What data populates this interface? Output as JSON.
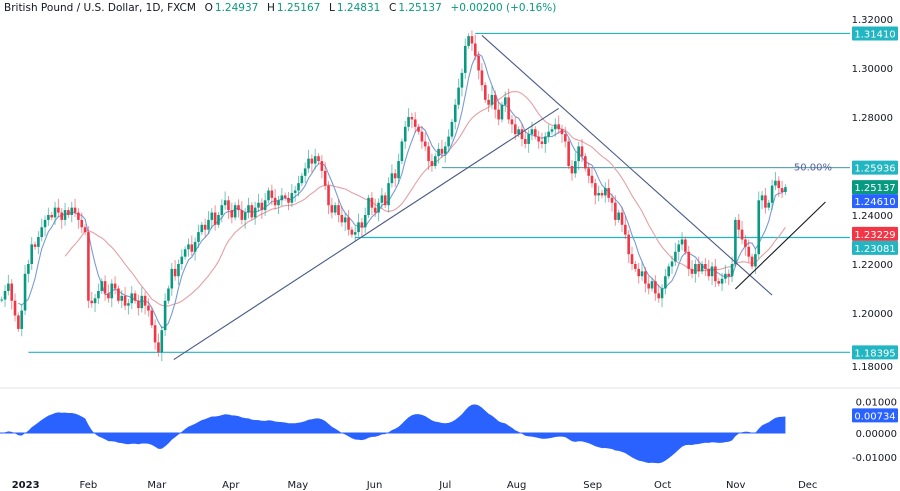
{
  "header": {
    "symbol": "British Pound / U.S. Dollar, 1D, FXCM",
    "o_label": "O",
    "open": "1.24937",
    "h_label": "H",
    "high": "1.25167",
    "l_label": "L",
    "low": "1.24831",
    "c_label": "C",
    "close": "1.25137",
    "change": "+0.00200 (+0.16%)"
  },
  "colors": {
    "up": "#089981",
    "down": "#f23645",
    "level": "#22b5c2",
    "trend": "#4a5a86",
    "ma_fast": "#7b9bd4",
    "ma_slow": "#e3a0a6",
    "osc": "#2962ff"
  },
  "chart_data": {
    "type": "candlestick",
    "price_axis": {
      "ylim": [
        1.175,
        1.325
      ],
      "ticks": [
        "1.32000",
        "1.30000",
        "1.28000",
        "1.24000",
        "1.22000",
        "1.20000",
        "1.18000"
      ]
    },
    "time_axis": {
      "ticks": [
        {
          "label": "2023",
          "bar": 3
        },
        {
          "label": "Feb",
          "bar": 26
        },
        {
          "label": "Mar",
          "bar": 46.5
        },
        {
          "label": "Apr",
          "bar": 68.7
        },
        {
          "label": "May",
          "bar": 88.8
        },
        {
          "label": "Jun",
          "bar": 111.8
        },
        {
          "label": "Jul",
          "bar": 133
        },
        {
          "label": "Aug",
          "bar": 154.4
        },
        {
          "label": "Sep",
          "bar": 177.2
        },
        {
          "label": "Oct",
          "bar": 198.2
        },
        {
          "label": "Nov",
          "bar": 220.1
        },
        {
          "label": "Dec",
          "bar": 241.7
        }
      ]
    },
    "closes": [
      1.2055,
      1.209,
      1.212,
      1.205,
      1.199,
      1.1935,
      1.201,
      1.216,
      1.22,
      1.228,
      1.227,
      1.231,
      1.235,
      1.238,
      1.24,
      1.239,
      1.243,
      1.241,
      1.238,
      1.242,
      1.24,
      1.243,
      1.241,
      1.238,
      1.235,
      1.233,
      1.205,
      1.204,
      1.206,
      1.209,
      1.213,
      1.208,
      1.206,
      1.212,
      1.21,
      1.205,
      1.207,
      1.203,
      1.204,
      1.208,
      1.205,
      1.202,
      1.207,
      1.203,
      1.201,
      1.195,
      1.188,
      1.184,
      1.193,
      1.205,
      1.21,
      1.218,
      1.215,
      1.22,
      1.223,
      1.226,
      1.228,
      1.225,
      1.229,
      1.233,
      1.236,
      1.234,
      1.238,
      1.241,
      1.236,
      1.24,
      1.244,
      1.246,
      1.242,
      1.239,
      1.244,
      1.242,
      1.238,
      1.241,
      1.244,
      1.239,
      1.243,
      1.245,
      1.242,
      1.246,
      1.25,
      1.247,
      1.244,
      1.246,
      1.248,
      1.247,
      1.245,
      1.249,
      1.25,
      1.253,
      1.256,
      1.259,
      1.263,
      1.261,
      1.264,
      1.262,
      1.258,
      1.252,
      1.244,
      1.241,
      1.244,
      1.24,
      1.237,
      1.239,
      1.234,
      1.232,
      1.233,
      1.237,
      1.235,
      1.24,
      1.247,
      1.243,
      1.241,
      1.245,
      1.248,
      1.244,
      1.253,
      1.257,
      1.255,
      1.262,
      1.27,
      1.276,
      1.28,
      1.279,
      1.276,
      1.274,
      1.27,
      1.268,
      1.262,
      1.26,
      1.264,
      1.267,
      1.265,
      1.268,
      1.272,
      1.278,
      1.285,
      1.292,
      1.298,
      1.309,
      1.313,
      1.31,
      1.305,
      1.299,
      1.293,
      1.287,
      1.285,
      1.289,
      1.283,
      1.279,
      1.285,
      1.288,
      1.279,
      1.277,
      1.273,
      1.275,
      1.271,
      1.269,
      1.273,
      1.275,
      1.272,
      1.27,
      1.269,
      1.272,
      1.274,
      1.275,
      1.277,
      1.275,
      1.273,
      1.27,
      1.26,
      1.257,
      1.262,
      1.268,
      1.264,
      1.259,
      1.256,
      1.253,
      1.248,
      1.249,
      1.248,
      1.251,
      1.247,
      1.245,
      1.238,
      1.241,
      1.236,
      1.232,
      1.224,
      1.22,
      1.218,
      1.215,
      1.217,
      1.212,
      1.21,
      1.213,
      1.208,
      1.206,
      1.21,
      1.215,
      1.219,
      1.221,
      1.225,
      1.228,
      1.23,
      1.225,
      1.218,
      1.216,
      1.22,
      1.217,
      1.22,
      1.218,
      1.215,
      1.219,
      1.213,
      1.212,
      1.214,
      1.216,
      1.215,
      1.22,
      1.238,
      1.234,
      1.23,
      1.227,
      1.223,
      1.219,
      1.224,
      1.246,
      1.248,
      1.243,
      1.245,
      1.252,
      1.254,
      1.251,
      1.2494,
      1.25137
    ],
    "levels": [
      {
        "price": 1.3141,
        "label": "1.31410",
        "from_bar": 142
      },
      {
        "price": 1.25936,
        "label": "1.25936",
        "from_bar": 132,
        "note": "50.00%"
      },
      {
        "price": 1.23081,
        "label": "1.23081",
        "from_bar": 106
      },
      {
        "price": 1.18395,
        "label": "1.18395",
        "from_bar": 8
      }
    ],
    "trendlines": [
      {
        "from": [
          51.6,
          1.181
        ],
        "to": [
          167,
          1.2835
        ],
        "color": "trend"
      },
      {
        "from": [
          144,
          1.3133
        ],
        "to": [
          231,
          1.2073
        ],
        "color": "trend"
      },
      {
        "from": [
          220,
          1.2098
        ],
        "to": [
          247,
          1.2453
        ],
        "color": "black"
      }
    ],
    "price_tags": [
      {
        "label": "1.25137",
        "price": 1.25137,
        "color": "#089981"
      },
      {
        "label": "1.24610",
        "price": 1.2461,
        "color": "#2962ff"
      },
      {
        "label": "1.23229",
        "price": 1.23229,
        "color": "#f23645"
      }
    ],
    "oscillator": {
      "ylim": [
        -0.015,
        0.012
      ],
      "ticks": [
        "0.01000",
        "0.00000",
        "-0.01000"
      ],
      "last": "0.00734"
    }
  }
}
